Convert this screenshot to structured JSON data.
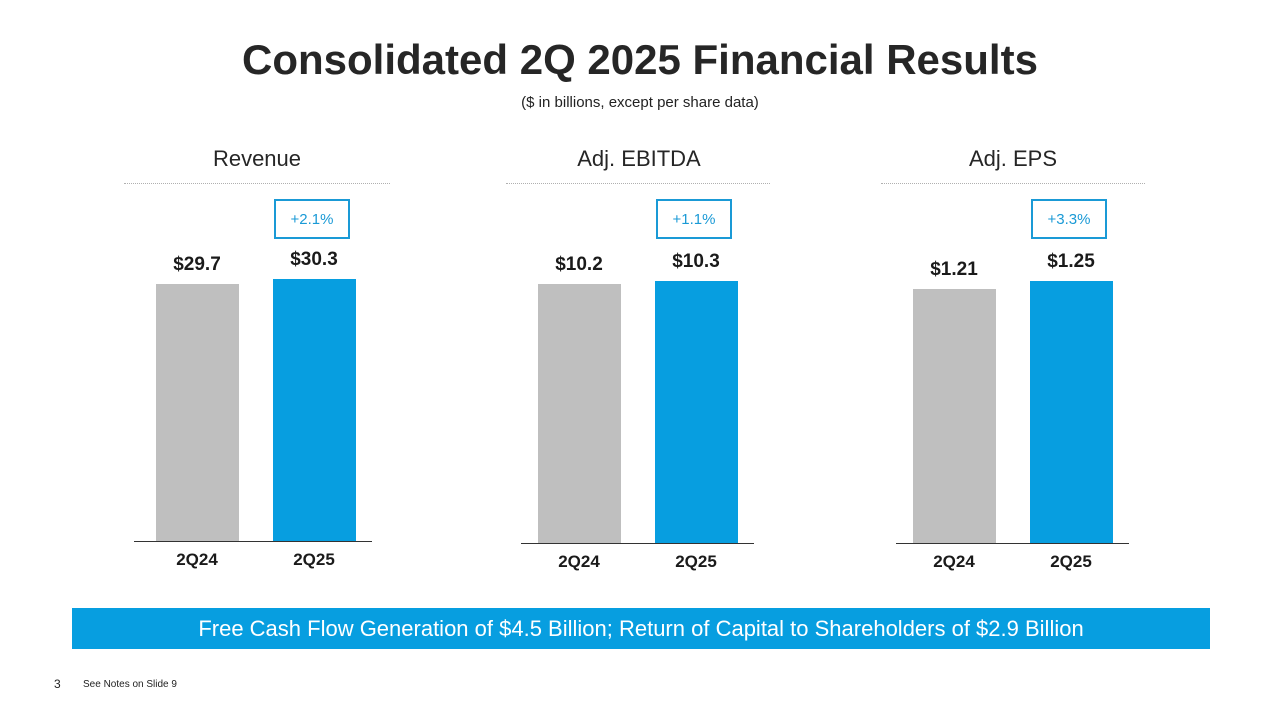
{
  "title": "Consolidated 2Q 2025 Financial Results",
  "subtitle": "($ in billions, except per share data)",
  "colors": {
    "prior": "#bfbfbf",
    "current": "#079ee0",
    "accent": "#1a9ad6"
  },
  "chart_data": [
    {
      "type": "bar",
      "title": "Revenue",
      "categories": [
        "2Q24",
        "2Q25"
      ],
      "values": [
        29.7,
        30.3
      ],
      "value_labels": [
        "$29.7",
        "$30.3"
      ],
      "change_label": "+2.1%"
    },
    {
      "type": "bar",
      "title": "Adj. EBITDA",
      "categories": [
        "2Q24",
        "2Q25"
      ],
      "values": [
        10.2,
        10.3
      ],
      "value_labels": [
        "$10.2",
        "$10.3"
      ],
      "change_label": "+1.1%"
    },
    {
      "type": "bar",
      "title": "Adj. EPS",
      "categories": [
        "2Q24",
        "2Q25"
      ],
      "values": [
        1.21,
        1.25
      ],
      "value_labels": [
        "$1.21",
        "$1.25"
      ],
      "change_label": "+3.3%"
    }
  ],
  "banner": "Free Cash Flow Generation of $4.5 Billion; Return of Capital to Shareholders of $2.9 Billion",
  "page_number": "3",
  "footnote": "See Notes on Slide 9"
}
